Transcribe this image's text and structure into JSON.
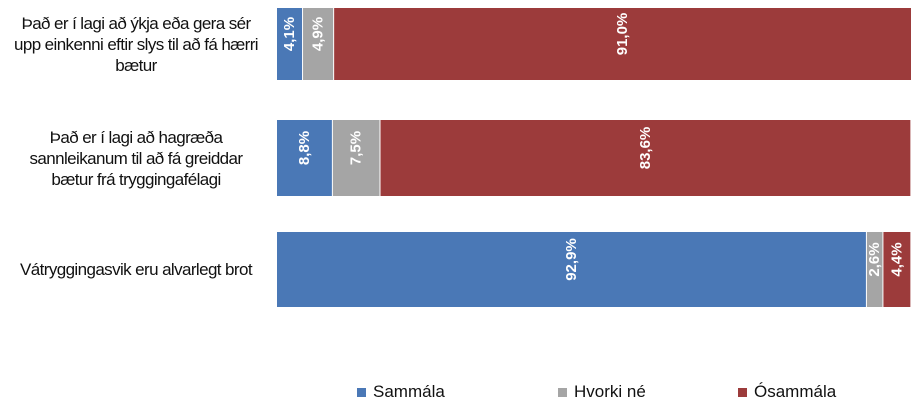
{
  "chart_data": {
    "type": "stacked-barh",
    "categories": [
      "Það er í lagi að ýkja eða gera sér upp einkenni eftir slys til að fá hærri bætur",
      "Það er í lagi að hagræða sannleikanum til að fá greiddar bætur frá tryggingafélagi",
      "Vátryggingasvik eru alvarlegt brot"
    ],
    "xlim": [
      0,
      100
    ],
    "legend": "bottom",
    "series": [
      {
        "name": "Sammála",
        "color": "#4a78b6",
        "values": [
          4.1,
          8.8,
          92.9
        ],
        "value_labels": [
          "4,1%",
          "8,8%",
          "92,9%"
        ]
      },
      {
        "name": "Hvorki né",
        "color": "#a5a5a5",
        "values": [
          4.9,
          7.5,
          2.6
        ],
        "value_labels": [
          "4,9%",
          "7,5%",
          "2,6%"
        ]
      },
      {
        "name": "Ósammála",
        "color": "#9c3b3b",
        "values": [
          91.0,
          83.6,
          4.4
        ],
        "value_labels": [
          "91,0%",
          "83,6%",
          "4,4%"
        ]
      }
    ]
  }
}
